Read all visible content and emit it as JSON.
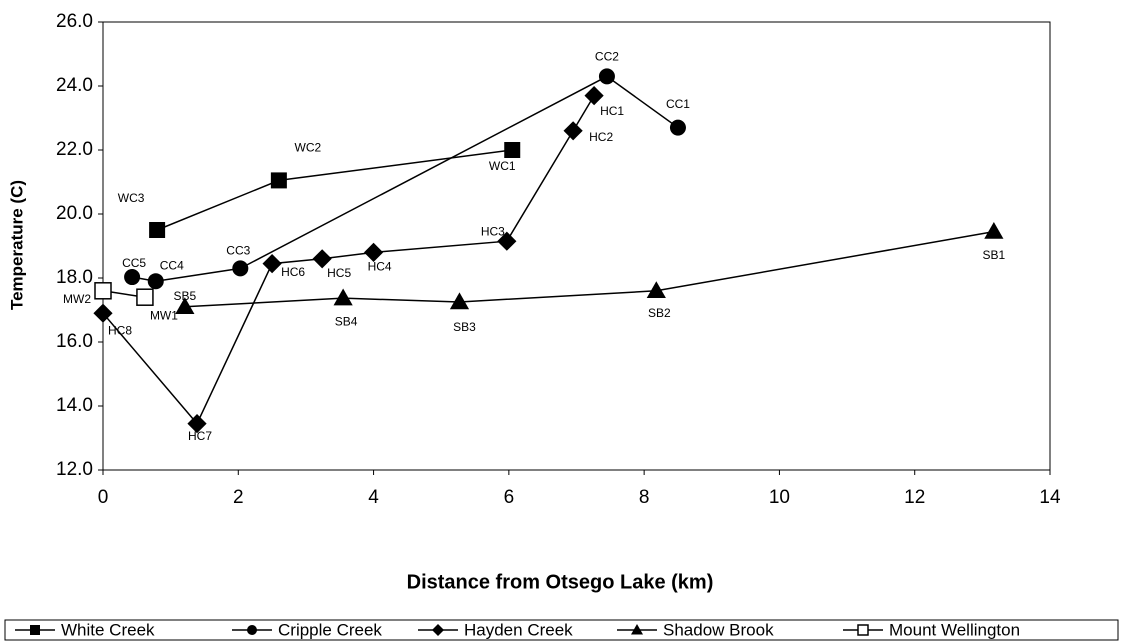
{
  "chart_data": {
    "type": "scatter",
    "xlabel": "Distance from Otsego Lake (km)",
    "ylabel": "Temperature (C)",
    "xlim": [
      0,
      14
    ],
    "xticks": [
      0,
      2,
      4,
      6,
      8,
      10,
      12,
      14
    ],
    "ylim": [
      12,
      26
    ],
    "yticks": [
      {
        "value": 12,
        "label": "12.0"
      },
      {
        "value": 14,
        "label": "14.0"
      },
      {
        "value": 16,
        "label": "16.0"
      },
      {
        "value": 18,
        "label": "18.0"
      },
      {
        "value": 20,
        "label": "20.0"
      },
      {
        "value": 22,
        "label": "22.0"
      },
      {
        "value": 24,
        "label": "24.0"
      },
      {
        "value": 26,
        "label": "26.0"
      }
    ],
    "legend": "bottom",
    "series": [
      {
        "name": "White Creek",
        "color": "#000000",
        "marker": "square",
        "x": [
          0.8,
          2.6,
          6.05
        ],
        "values": [
          19.5,
          21.05,
          22.0
        ],
        "point_labels": [
          "WC3",
          "WC2",
          "WC1"
        ]
      },
      {
        "name": "Cripple Creek",
        "color": "#000000",
        "marker": "circle",
        "x": [
          0.43,
          0.78,
          2.03,
          7.45,
          8.5
        ],
        "values": [
          18.03,
          17.9,
          18.3,
          24.3,
          22.7
        ],
        "point_labels": [
          "CC5",
          "CC4",
          "CC3",
          "CC2",
          "CC1"
        ]
      },
      {
        "name": "Hayden Creek",
        "color": "#000000",
        "marker": "diamond",
        "x": [
          0.0,
          1.39,
          2.5,
          3.24,
          4.0,
          5.97,
          6.95,
          7.26
        ],
        "values": [
          16.9,
          13.45,
          18.45,
          18.6,
          18.8,
          19.15,
          22.6,
          23.7
        ],
        "point_labels": [
          "HC8",
          "HC7",
          "HC6",
          "HC5",
          "HC4",
          "HC3",
          "HC2",
          "HC1"
        ]
      },
      {
        "name": "Shadow  Brook",
        "color": "#000000",
        "marker": "triangle",
        "x": [
          1.21,
          3.55,
          5.27,
          8.18,
          13.17
        ],
        "values": [
          17.1,
          17.37,
          17.25,
          17.6,
          19.45
        ],
        "point_labels": [
          "SB5",
          "SB4",
          "SB3",
          "SB2",
          "SB1"
        ]
      },
      {
        "name": "Mount Wellington",
        "color": "#000000",
        "marker": "open-square",
        "x": [
          0.0,
          0.62
        ],
        "values": [
          17.6,
          17.4
        ],
        "point_labels": [
          "MW2",
          "MW1"
        ]
      }
    ]
  }
}
